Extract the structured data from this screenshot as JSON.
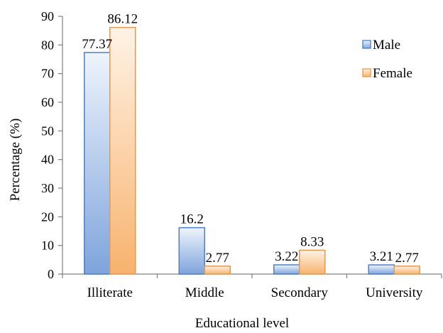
{
  "chart_data": {
    "type": "bar",
    "xlabel": "Educational level",
    "ylabel": "Percentage (%)",
    "ylim": [
      0,
      90
    ],
    "yticks": [
      0,
      10,
      20,
      30,
      40,
      50,
      60,
      70,
      80,
      90
    ],
    "categories": [
      "Illiterate",
      "Middle",
      "Secondary",
      "University"
    ],
    "series": [
      {
        "name": "Male",
        "values": [
          77.37,
          16.2,
          3.22,
          3.21
        ],
        "data_labels": [
          "77.37",
          "16.2",
          "3.22",
          "3.21"
        ]
      },
      {
        "name": "Female",
        "values": [
          86.12,
          2.77,
          8.33,
          2.77
        ],
        "data_labels": [
          "86.12",
          "2.77",
          "8.33",
          "2.77"
        ]
      }
    ],
    "grid": false,
    "legend_position": "top-right"
  },
  "colors": {
    "male_fill_light": "#eef4fc",
    "male_fill_dark": "#7ea4dc",
    "male_stroke": "#4f7fc7",
    "female_fill_light": "#fff3e6",
    "female_fill_dark": "#f7b36e",
    "female_stroke": "#e39a4e"
  }
}
